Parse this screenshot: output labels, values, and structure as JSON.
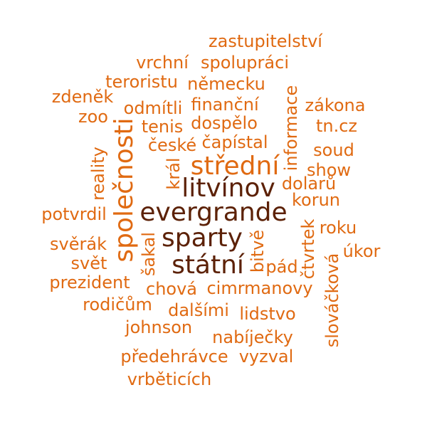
{
  "palette": {
    "small": "#e06a12",
    "large": "#5c2106"
  },
  "words": [
    {
      "text": "zastupitelství"
    },
    {
      "text": "vrchní"
    },
    {
      "text": "spolupráci"
    },
    {
      "text": "teroristu"
    },
    {
      "text": "německu"
    },
    {
      "text": "zdeněk"
    },
    {
      "text": "informace"
    },
    {
      "text": "finanční"
    },
    {
      "text": "zákona"
    },
    {
      "text": "odmítli"
    },
    {
      "text": "zoo"
    },
    {
      "text": "tenis"
    },
    {
      "text": "dospělo"
    },
    {
      "text": "tn.cz"
    },
    {
      "text": "společnosti"
    },
    {
      "text": "čapístal"
    },
    {
      "text": "české"
    },
    {
      "text": "soud"
    },
    {
      "text": "reality"
    },
    {
      "text": "střední"
    },
    {
      "text": "král"
    },
    {
      "text": "show"
    },
    {
      "text": "litvínov"
    },
    {
      "text": "dolarů"
    },
    {
      "text": "korun"
    },
    {
      "text": "potvrdil"
    },
    {
      "text": "evergrande"
    },
    {
      "text": "čtvrtek"
    },
    {
      "text": "roku"
    },
    {
      "text": "svěrák"
    },
    {
      "text": "sparty"
    },
    {
      "text": "šakal"
    },
    {
      "text": "bitvě"
    },
    {
      "text": "úkor"
    },
    {
      "text": "svět"
    },
    {
      "text": "státní"
    },
    {
      "text": "pád"
    },
    {
      "text": "prezident"
    },
    {
      "text": "slováčková"
    },
    {
      "text": "chová"
    },
    {
      "text": "cimrmanovy"
    },
    {
      "text": "rodičům"
    },
    {
      "text": "dalšími"
    },
    {
      "text": "lidstvo"
    },
    {
      "text": "johnson"
    },
    {
      "text": "nabíječky"
    },
    {
      "text": "předehrávce"
    },
    {
      "text": "vyzval"
    },
    {
      "text": "vrběticích"
    }
  ]
}
